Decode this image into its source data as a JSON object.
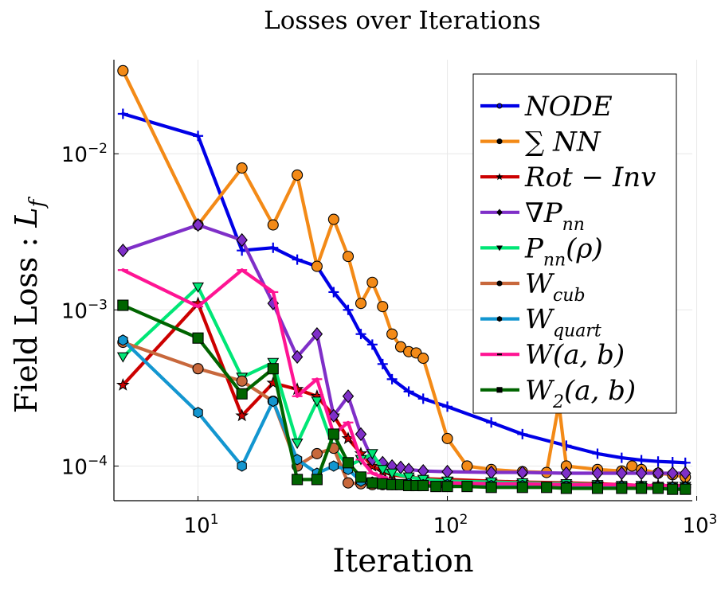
{
  "chart_data": {
    "type": "line",
    "title": "Losses over Iterations",
    "xlabel": "Iteration",
    "ylabel": "Field Loss : L_f",
    "xscale": "log",
    "yscale": "log",
    "xlim": [
      4.6,
      960
    ],
    "ylim": [
      6e-05,
      0.04
    ],
    "xticks": [
      {
        "value": 10,
        "base": "10",
        "exp": "1"
      },
      {
        "value": 100,
        "base": "10",
        "exp": "2"
      },
      {
        "value": 1000,
        "base": "10",
        "exp": "3"
      }
    ],
    "yticks": [
      {
        "value": 0.0001,
        "base": "10",
        "exp": "−4"
      },
      {
        "value": 0.001,
        "base": "10",
        "exp": "−3"
      },
      {
        "value": 0.01,
        "base": "10",
        "exp": "−2"
      }
    ],
    "grid": true,
    "legend_position": "top-right",
    "series": [
      {
        "name": "NODE",
        "label": {
          "main": "NODE",
          "sub": ""
        },
        "color": "#0000e6",
        "marker": "plus",
        "x": [
          5,
          10,
          15,
          20,
          25,
          30,
          35,
          40,
          45,
          50,
          55,
          60,
          70,
          80,
          100,
          150,
          200,
          300,
          400,
          500,
          600,
          700,
          800,
          900
        ],
        "y": [
          0.018,
          0.013,
          0.0024,
          0.0025,
          0.0021,
          0.0019,
          0.0013,
          0.001,
          0.0007,
          0.0006,
          0.00045,
          0.00036,
          0.0003,
          0.00027,
          0.00024,
          0.00019,
          0.00016,
          0.000135,
          0.00012,
          0.000113,
          0.000109,
          0.000107,
          0.000106,
          0.000105
        ]
      },
      {
        "name": "∑ NN",
        "label": {
          "main": "∑  NN",
          "sub": ""
        },
        "color": "#f38a17",
        "marker": "circle",
        "x": [
          5,
          10,
          15,
          20,
          25,
          30,
          35,
          40,
          45,
          50,
          55,
          60,
          65,
          70,
          75,
          80,
          100,
          120,
          150,
          200,
          250,
          280,
          300,
          400,
          500,
          550,
          600,
          700,
          800,
          900
        ],
        "y": [
          0.034,
          0.0035,
          0.0081,
          0.0035,
          0.0073,
          0.0019,
          0.0038,
          0.0022,
          0.0011,
          0.0015,
          0.00105,
          0.0007,
          0.00058,
          0.00054,
          0.00053,
          0.00049,
          0.00015,
          0.0001,
          9.5e-05,
          9.2e-05,
          9.1e-05,
          0.00025,
          0.0001,
          9.5e-05,
          9.3e-05,
          0.0001,
          9.5e-05,
          9e-05,
          8.8e-05,
          8.5e-05
        ]
      },
      {
        "name": "Rot-Inv",
        "label": {
          "main": "Rot − Inv",
          "sub": ""
        },
        "color": "#cc0000",
        "marker": "star",
        "x": [
          5,
          10,
          15,
          20,
          25,
          30,
          35,
          40,
          45,
          50,
          55,
          60,
          70,
          80,
          100,
          150,
          200,
          300,
          400,
          500,
          600,
          700,
          800,
          900
        ],
        "y": [
          0.00033,
          0.0011,
          0.00021,
          0.00034,
          0.00031,
          0.00028,
          0.00021,
          0.00015,
          0.00012,
          0.0001,
          9.2e-05,
          8.8e-05,
          8.5e-05,
          8.3e-05,
          8.2e-05,
          8e-05,
          7.9e-05,
          7.8e-05,
          7.7e-05,
          7.6e-05,
          7.5e-05,
          7.5e-05,
          7.4e-05,
          7.4e-05
        ]
      },
      {
        "name": "∇P_nn",
        "label": {
          "main": "∇P",
          "sub": "nn"
        },
        "color": "#7f2fc8",
        "marker": "diamond",
        "x": [
          5,
          10,
          15,
          20,
          25,
          30,
          35,
          40,
          45,
          50,
          55,
          60,
          65,
          70,
          80,
          100,
          150,
          200,
          300,
          400,
          500,
          600,
          700,
          800,
          900
        ],
        "y": [
          0.0024,
          0.0035,
          0.0028,
          0.0011,
          0.0005,
          0.0007,
          0.00021,
          0.00028,
          0.00016,
          0.00011,
          0.000105,
          0.0001,
          9.8e-05,
          9.5e-05,
          9.3e-05,
          9.2e-05,
          9.1e-05,
          9.1e-05,
          9e-05,
          9e-05,
          9e-05,
          9e-05,
          9e-05,
          9e-05,
          9e-05
        ]
      },
      {
        "name": "P_nn(ρ)",
        "label": {
          "main": "P",
          "sub": "nn",
          "suffix": "(ρ)"
        },
        "color": "#00e676",
        "marker": "triangle-down",
        "x": [
          5,
          10,
          15,
          20,
          25,
          30,
          35,
          40,
          45,
          50,
          55,
          60,
          70,
          80,
          100,
          150,
          200,
          300,
          400,
          500,
          600,
          700,
          800,
          900
        ],
        "y": [
          0.0005,
          0.0014,
          0.00037,
          0.00046,
          0.00014,
          0.00026,
          0.00013,
          0.0001,
          0.00011,
          0.00012,
          9.5e-05,
          9e-05,
          8.5e-05,
          8.2e-05,
          8e-05,
          7.9e-05,
          7.8e-05,
          7.7e-05,
          7.6e-05,
          7.5e-05,
          7.5e-05,
          7.4e-05,
          7.4e-05,
          7.4e-05
        ]
      },
      {
        "name": "W_cub",
        "label": {
          "main": "W",
          "sub": "cub"
        },
        "color": "#c8683c",
        "marker": "circle",
        "x": [
          5,
          10,
          15,
          20,
          25,
          30,
          35,
          40,
          45,
          50,
          55,
          60,
          70,
          80,
          100,
          150,
          200,
          300,
          400,
          500,
          600,
          700,
          800,
          900
        ],
        "y": [
          0.00062,
          0.00042,
          0.00035,
          0.00026,
          0.0001,
          0.00012,
          0.00013,
          7.8e-05,
          7.7e-05,
          7.6e-05,
          7.6e-05,
          7.6e-05,
          7.5e-05,
          7.5e-05,
          7.5e-05,
          7.4e-05,
          7.4e-05,
          7.4e-05,
          7.4e-05,
          7.3e-05,
          7.3e-05,
          7.3e-05,
          7.3e-05,
          7.3e-05
        ]
      },
      {
        "name": "W_quart",
        "label": {
          "main": "W",
          "sub": "quart"
        },
        "color": "#1396d0",
        "marker": "hexagon",
        "x": [
          5,
          10,
          15,
          20,
          25,
          30,
          35,
          40,
          45,
          50,
          55,
          60,
          70,
          80,
          100,
          150,
          200,
          300,
          400,
          500,
          600,
          700,
          800,
          900
        ],
        "y": [
          0.00064,
          0.00022,
          0.0001,
          0.00026,
          0.00011,
          9e-05,
          0.0001,
          9.5e-05,
          8e-05,
          7.9e-05,
          7.8e-05,
          7.7e-05,
          7.7e-05,
          7.6e-05,
          7.6e-05,
          7.5e-05,
          7.5e-05,
          7.4e-05,
          7.4e-05,
          7.4e-05,
          7.3e-05,
          7.3e-05,
          7.3e-05,
          7.3e-05
        ]
      },
      {
        "name": "W(a,b)",
        "label": {
          "main": "W(a, b)",
          "sub": ""
        },
        "color": "#ff1493",
        "marker": "dash",
        "x": [
          5,
          10,
          15,
          20,
          25,
          30,
          35,
          40,
          45,
          50,
          55,
          60,
          70,
          80,
          100,
          150,
          200,
          300,
          400,
          500,
          600,
          700,
          800,
          900
        ],
        "y": [
          0.0018,
          0.00105,
          0.0018,
          0.0013,
          0.00028,
          0.00036,
          0.00016,
          0.00019,
          0.00011,
          9e-05,
          8.5e-05,
          8e-05,
          7.9e-05,
          7.8e-05,
          7.8e-05,
          7.7e-05,
          7.7e-05,
          7.6e-05,
          7.6e-05,
          7.6e-05,
          7.5e-05,
          7.5e-05,
          7.5e-05,
          7.5e-05
        ]
      },
      {
        "name": "W_2(a,b)",
        "label": {
          "main": "W",
          "sub": "2",
          "suffix": "(a, b)"
        },
        "color": "#006400",
        "marker": "square",
        "x": [
          5,
          10,
          15,
          20,
          25,
          30,
          35,
          40,
          45,
          50,
          55,
          60,
          65,
          70,
          75,
          80,
          90,
          100,
          120,
          150,
          200,
          250,
          300,
          400,
          500,
          600,
          700,
          800,
          900
        ],
        "y": [
          0.00107,
          0.00066,
          0.00029,
          0.00042,
          8.2e-05,
          8.2e-05,
          0.00016,
          0.000105,
          8.5e-05,
          7.8e-05,
          7.7e-05,
          7.6e-05,
          7.6e-05,
          7.5e-05,
          7.5e-05,
          7.5e-05,
          7.4e-05,
          7.4e-05,
          7.4e-05,
          7.3e-05,
          7.3e-05,
          7.3e-05,
          7.2e-05,
          7.2e-05,
          7.2e-05,
          7.2e-05,
          7.2e-05,
          7.1e-05,
          7.1e-05
        ]
      }
    ]
  }
}
